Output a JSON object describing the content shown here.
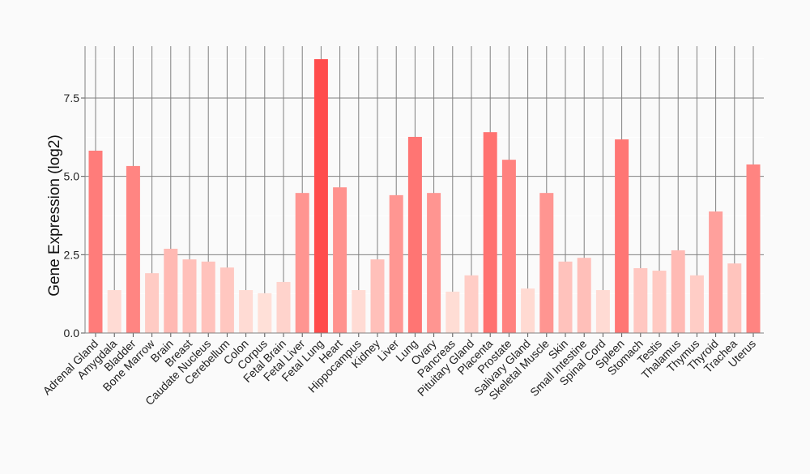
{
  "chart_data": {
    "type": "bar",
    "title": "",
    "xlabel": "",
    "ylabel": "Gene Expression (log2)",
    "ylim": [
      0,
      9.2
    ],
    "yticks": [
      "0.0",
      "2.5",
      "5.0",
      "7.5"
    ],
    "ytick_values": [
      0,
      2.5,
      5.0,
      7.5
    ],
    "grid": true,
    "color_low": "#ffe0d8",
    "color_high": "#ff4c4c",
    "categories": [
      "Adrenal Gland",
      "Amygdala",
      "Bladder",
      "Bone Marrow",
      "Brain",
      "Breast",
      "Caudate Nucleus",
      "Cerebellum",
      "Colon",
      "Corpus",
      "Fetal Brain",
      "Fetal Liver",
      "Fetal Lung",
      "Heart",
      "Hippocampus",
      "Kidney",
      "Liver",
      "Lung",
      "Ovary",
      "Pancreas",
      "Pituitary Gland",
      "Placenta",
      "Prostate",
      "Salivary Gland",
      "Skeletal Muscle",
      "Skin",
      "Small Intestine",
      "Spinal Cord",
      "Spleen",
      "Stomach",
      "Testis",
      "Thalamus",
      "Thymus",
      "Thyroid",
      "Trachea",
      "Uterus"
    ],
    "values": [
      5.82,
      1.37,
      5.33,
      1.91,
      2.69,
      2.35,
      2.28,
      2.09,
      1.37,
      1.27,
      1.63,
      4.47,
      8.74,
      4.65,
      1.37,
      2.35,
      4.4,
      6.26,
      4.47,
      1.32,
      1.84,
      6.41,
      5.53,
      1.42,
      4.47,
      2.28,
      2.4,
      1.37,
      6.18,
      2.07,
      1.99,
      2.64,
      1.84,
      3.88,
      2.22,
      5.38
    ]
  }
}
